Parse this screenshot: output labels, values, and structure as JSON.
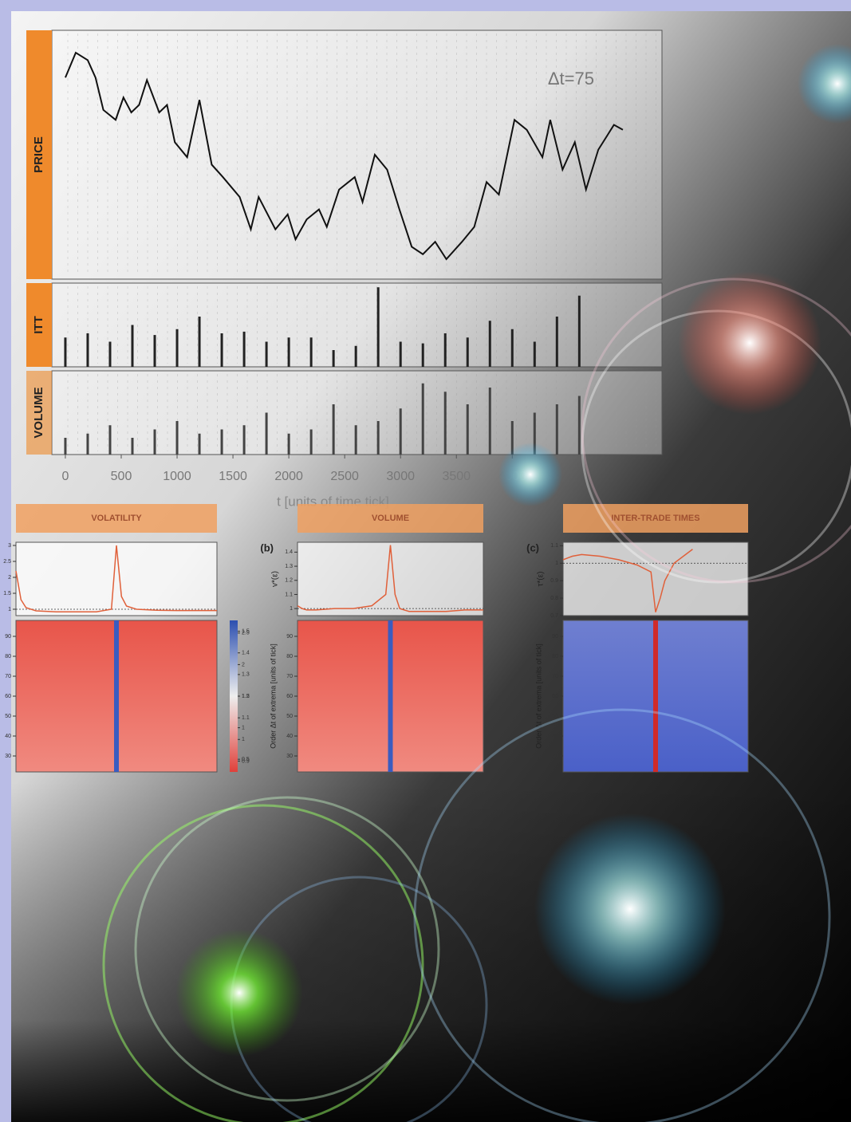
{
  "chart_data": [
    {
      "type": "line",
      "label": "PRICE",
      "annotation": "Δt=75",
      "color": "#111111",
      "x": [
        0,
        93,
        200,
        270,
        340,
        450,
        520,
        590,
        660,
        730,
        840,
        910,
        980,
        1090,
        1200,
        1310,
        1410,
        1560,
        1660,
        1730,
        1880,
        1990,
        2060,
        2160,
        2270,
        2340,
        2450,
        2590,
        2660,
        2770,
        2880,
        2990,
        3100,
        3200,
        3310,
        3410,
        3550,
        3660,
        3770,
        3880,
        4020,
        4130,
        4270,
        4340,
        4450,
        4560,
        4660,
        4770,
        4910,
        4990
      ],
      "values": [
        81,
        91,
        88,
        81,
        68,
        64,
        73,
        67,
        70,
        80,
        67,
        70,
        55,
        49,
        72,
        46,
        41,
        33,
        20,
        33,
        20,
        26,
        16,
        24,
        28,
        21,
        36,
        41,
        31,
        50,
        44,
        28,
        13,
        10,
        15,
        8,
        15,
        21,
        39,
        34,
        64,
        60,
        49,
        64,
        44,
        55,
        36,
        52,
        62,
        60
      ],
      "xlim": [
        -121,
        5340
      ],
      "ylim": [
        0,
        100
      ]
    },
    {
      "type": "bar",
      "label": "ITT",
      "color": "#222222",
      "x": [
        0,
        200,
        400,
        600,
        800,
        1000,
        1200,
        1400,
        1600,
        1800,
        2000,
        2200,
        2400,
        2600,
        2800,
        3000,
        3200,
        3400,
        3600,
        3800,
        4000,
        4200,
        4400,
        4600
      ],
      "values": [
        35,
        40,
        30,
        50,
        38,
        45,
        60,
        40,
        42,
        30,
        35,
        35,
        20,
        25,
        95,
        30,
        28,
        40,
        35,
        55,
        45,
        30,
        60,
        85
      ],
      "xlim": [
        -121,
        5340
      ],
      "ylim": [
        0,
        100
      ]
    },
    {
      "type": "bar",
      "label": "VOLUME",
      "color": "#444444",
      "x": [
        0,
        200,
        400,
        600,
        800,
        1000,
        1200,
        1400,
        1600,
        1800,
        2000,
        2200,
        2400,
        2600,
        2800,
        3000,
        3200,
        3400,
        3600,
        3800,
        4000,
        4200,
        4400,
        4600
      ],
      "values": [
        20,
        25,
        35,
        20,
        30,
        40,
        25,
        30,
        35,
        50,
        25,
        30,
        60,
        35,
        40,
        55,
        85,
        75,
        60,
        80,
        40,
        50,
        60,
        70
      ],
      "xlim": [
        -121,
        5340
      ],
      "ylim": [
        0,
        100
      ],
      "xticks": [
        0,
        500,
        1000,
        1500,
        2000,
        2500,
        3000,
        3500,
        4000
      ],
      "xlabel": "t [units of time tick]"
    },
    {
      "type": "line",
      "title": "VOLATILITY",
      "color": "#e0603a",
      "x": [
        0,
        0.05,
        0.1,
        0.2,
        0.4,
        0.6,
        0.8,
        0.95,
        1.0,
        1.05,
        1.1,
        1.2,
        1.4,
        1.6,
        1.8,
        2.0
      ],
      "values": [
        2.2,
        1.3,
        1.05,
        0.95,
        0.92,
        0.92,
        0.92,
        1.0,
        3.0,
        1.4,
        1.1,
        1.0,
        0.97,
        0.96,
        0.96,
        0.96
      ],
      "xlim": [
        0,
        2
      ],
      "ylim": [
        0.8,
        3.1
      ],
      "yticks": [
        1.0,
        1.5,
        2.0,
        2.5,
        3.0
      ],
      "heatmap_yticks": [
        30,
        40,
        50,
        60,
        70,
        80,
        90
      ],
      "heatmap_ylim": [
        22,
        98
      ],
      "colorbar_ticks": [
        2.5,
        2.0,
        1.5,
        1.0,
        0.5
      ],
      "colorbar_lim": [
        0.3,
        2.7
      ]
    },
    {
      "type": "line",
      "title": "VOLUME",
      "panel_letter": "(b)",
      "ylabel": "v*(ε)",
      "color": "#e0603a",
      "x": [
        0,
        0.05,
        0.1,
        0.2,
        0.4,
        0.6,
        0.8,
        0.95,
        1.0,
        1.05,
        1.1,
        1.2,
        1.4,
        1.6,
        1.8,
        2.0
      ],
      "values": [
        1.02,
        1.0,
        0.99,
        0.99,
        1.0,
        1.0,
        1.02,
        1.1,
        1.45,
        1.1,
        1.0,
        0.98,
        0.98,
        0.98,
        0.99,
        0.99
      ],
      "xlim": [
        0,
        2
      ],
      "ylim": [
        0.95,
        1.47
      ],
      "yticks": [
        1.0,
        1.1,
        1.2,
        1.3,
        1.4
      ],
      "heatmap_ylabel": "Order Δt of extrema [units of tick]",
      "heatmap_yticks": [
        30,
        40,
        50,
        60,
        70,
        80,
        90
      ],
      "heatmap_ylim": [
        22,
        98
      ],
      "colorbar_ticks": [
        1.5,
        1.4,
        1.3,
        1.2,
        1.1,
        1.0,
        0.9
      ],
      "colorbar_lim": [
        0.85,
        1.55
      ]
    },
    {
      "type": "line",
      "title": "INTER-TRADE TIMES",
      "panel_letter": "(c)",
      "ylabel": "τ*(ε)",
      "color": "#e0603a",
      "x": [
        0,
        0.05,
        0.1,
        0.2,
        0.4,
        0.6,
        0.8,
        0.95,
        1.0,
        1.05,
        1.1,
        1.2,
        1.4
      ],
      "values": [
        1.02,
        1.03,
        1.04,
        1.05,
        1.04,
        1.02,
        0.99,
        0.95,
        0.72,
        0.8,
        0.9,
        1.0,
        1.08
      ],
      "xlim": [
        0,
        2
      ],
      "ylim": [
        0.7,
        1.12
      ],
      "yticks": [
        0.7,
        0.8,
        0.9,
        1.0,
        1.1
      ],
      "heatmap_ylabel": "Order Δt of extrema [units of tick]",
      "heatmap_yticks": [
        30,
        40,
        50,
        60,
        70,
        80,
        90
      ],
      "heatmap_ylim": [
        22,
        98
      ]
    }
  ]
}
